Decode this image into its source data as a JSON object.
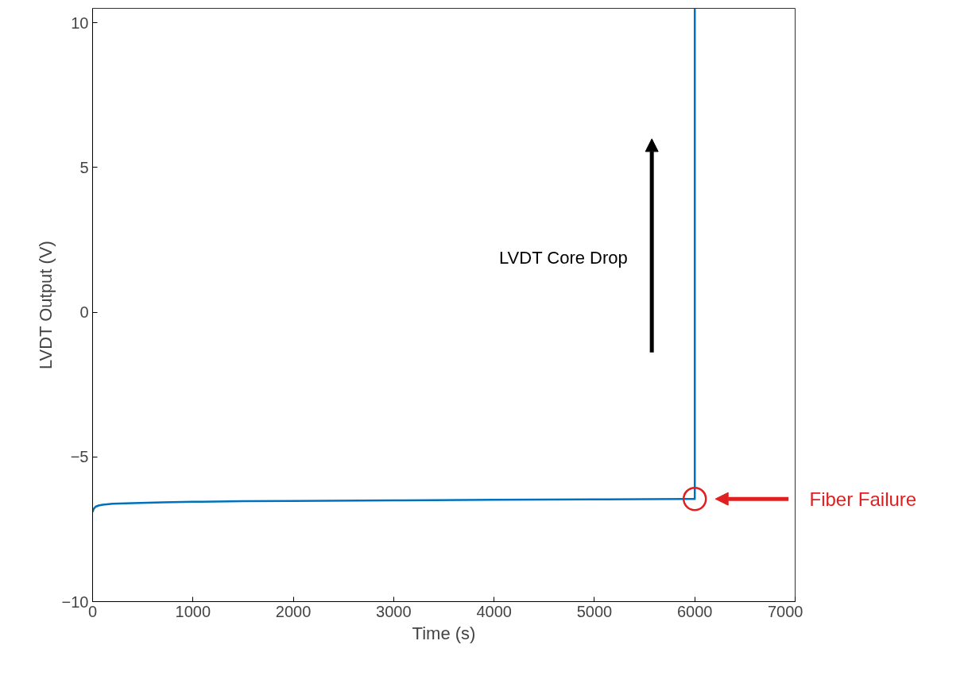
{
  "chart_data": {
    "type": "line",
    "xlabel": "Time (s)",
    "ylabel": "LVDT Output (V)",
    "x": [
      0,
      10,
      30,
      60,
      100,
      200,
      400,
      700,
      1000,
      1500,
      2000,
      3000,
      4000,
      5000,
      5900,
      6000,
      6000
    ],
    "series": [
      {
        "color": "#0072bd",
        "values": [
          -6.9,
          -6.8,
          -6.72,
          -6.68,
          -6.65,
          -6.62,
          -6.6,
          -6.57,
          -6.55,
          -6.53,
          -6.52,
          -6.5,
          -6.48,
          -6.47,
          -6.45,
          -6.45,
          10.5
        ]
      }
    ],
    "xlim": [
      0,
      7000
    ],
    "ylim": [
      -10,
      10.5
    ],
    "xticks": [
      0,
      1000,
      2000,
      3000,
      4000,
      5000,
      6000,
      7000
    ],
    "yticks": [
      -10,
      -5,
      0,
      5,
      10
    ],
    "grid": false,
    "marker": "none",
    "line_style": "solid",
    "annotations": [
      "LVDT Core Drop",
      "Fiber Failure"
    ]
  }
}
